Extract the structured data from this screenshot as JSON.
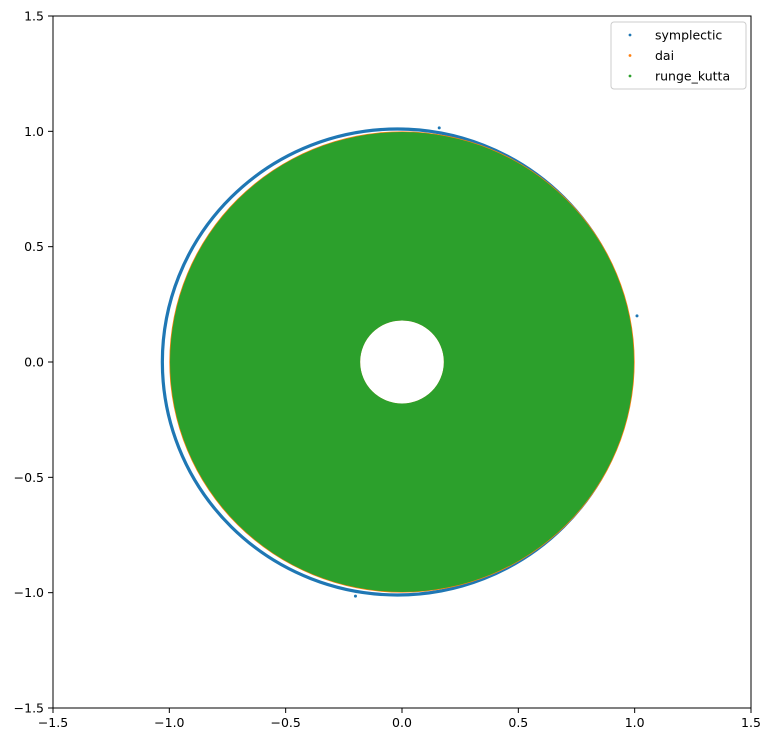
{
  "chart_data": {
    "type": "scatter",
    "title": "",
    "xlabel": "",
    "ylabel": "",
    "xlim": [
      -1.5,
      1.5
    ],
    "ylim": [
      -1.5,
      1.5
    ],
    "xticks": [
      -1.5,
      -1.0,
      -0.5,
      0.0,
      0.5,
      1.0,
      1.5
    ],
    "yticks": [
      -1.5,
      -1.0,
      -0.5,
      0.0,
      0.5,
      1.0,
      1.5
    ],
    "xtick_labels": [
      "−1.5",
      "−1.0",
      "−0.5",
      "0.0",
      "0.5",
      "1.0",
      "1.5"
    ],
    "ytick_labels": [
      "−1.5",
      "−1.0",
      "−0.5",
      "0.0",
      "0.5",
      "1.0",
      "1.5"
    ],
    "grid": false,
    "legend_position": "top-right",
    "series": [
      {
        "name": "symplectic",
        "color": "#1f77b4",
        "shape": "ring trajectory, center offset",
        "center": [
          -0.02,
          0.0
        ],
        "radius": 1.01,
        "note_points": [
          [
            0.16,
            1.015
          ],
          [
            1.01,
            0.2
          ],
          [
            -0.2,
            -1.015
          ],
          [
            -1.01,
            -0.2
          ]
        ]
      },
      {
        "name": "dai",
        "color": "#ff7f0e",
        "shape": "filled annulus",
        "center": [
          0.0,
          0.0
        ],
        "outer_radius": 1.0,
        "inner_radius": 0.18
      },
      {
        "name": "runge_kutta",
        "color": "#2ca02c",
        "shape": "filled annulus",
        "center": [
          0.0,
          0.0
        ],
        "outer_radius": 0.997,
        "inner_radius": 0.18
      }
    ]
  }
}
